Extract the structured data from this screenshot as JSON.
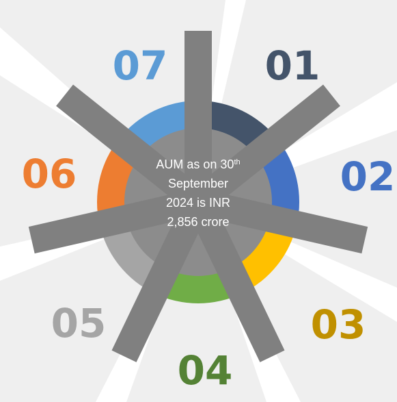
{
  "center": {
    "lines": [
      {
        "text": "AUM as on 30",
        "sup": "th"
      },
      {
        "text": "September"
      },
      {
        "text": "2024 is INR"
      },
      {
        "text": "2,856 crore"
      }
    ]
  },
  "segments": [
    {
      "label": "01",
      "color": "#44546a",
      "label_color": "#44546a"
    },
    {
      "label": "02",
      "color": "#4472c4",
      "label_color": "#4472c4"
    },
    {
      "label": "03",
      "color": "#ffc000",
      "label_color": "#c09000"
    },
    {
      "label": "04",
      "color": "#70ad47",
      "label_color": "#548235"
    },
    {
      "label": "05",
      "color": "#a5a5a5",
      "label_color": "#a5a5a5"
    },
    {
      "label": "06",
      "color": "#ed7d31",
      "label_color": "#ed7d31"
    },
    {
      "label": "07",
      "color": "#5b9bd5",
      "label_color": "#5b9bd5"
    }
  ]
}
